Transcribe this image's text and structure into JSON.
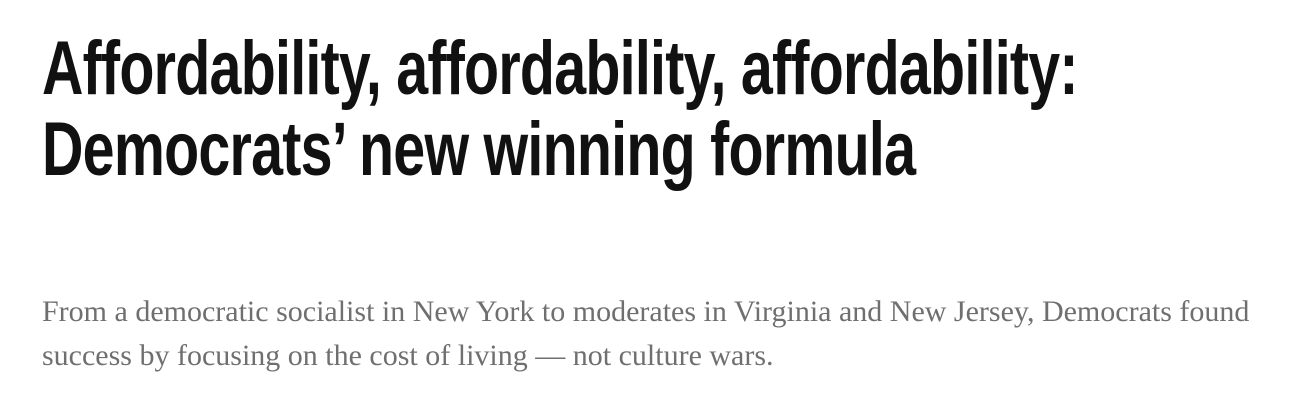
{
  "headline": "Affordability, affordability, affordability: Democrats’ new winning formula",
  "subheadline": "From a democratic socialist in New York to moderates in Virginia and New Jersey, Democrats found success by focusing on the cost of living — not culture wars."
}
